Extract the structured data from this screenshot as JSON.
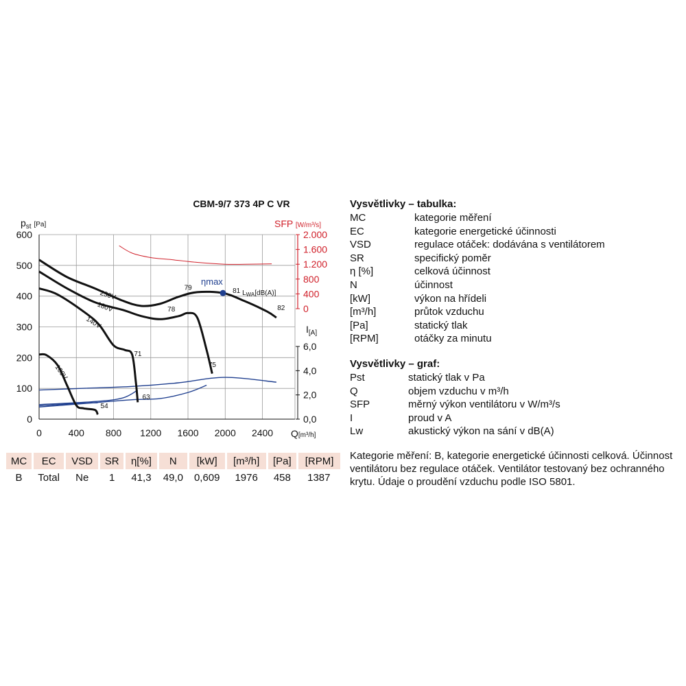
{
  "chart_data": {
    "type": "line",
    "title": "CBM-9/7 373 4P C VR",
    "xlabel": "Q",
    "xunit": "[m³/h]",
    "ylabel": "p",
    "ylabel_sub": "st",
    "yunit": "[Pa]",
    "sfp_label": "SFP",
    "sfp_unit": "[W/m³/s]",
    "current_label": "I",
    "current_unit": "[A]",
    "xlim": [
      0,
      2750
    ],
    "ylim": [
      0,
      600
    ],
    "x_ticks": [
      0,
      400,
      800,
      1200,
      1600,
      2000,
      2400
    ],
    "x_tick_labels": [
      "0",
      "400",
      "800",
      "1200",
      "1600",
      "2000",
      "2400"
    ],
    "y_ticks": [
      0,
      100,
      200,
      300,
      400,
      500,
      600
    ],
    "y_tick_labels": [
      "0",
      "100",
      "200",
      "300",
      "400",
      "500",
      "600"
    ],
    "sfp_ticks": [
      0,
      400,
      800,
      1200,
      1600,
      2000
    ],
    "sfp_tick_labels": [
      "0",
      "400",
      "800",
      "1.200",
      "1.600",
      "2.000"
    ],
    "current_ticks": [
      0,
      2,
      4,
      6
    ],
    "current_tick_labels": [
      "0,0",
      "2,0",
      "4,0",
      "6,0"
    ],
    "grid": true,
    "pressure_series": [
      {
        "name": "230V",
        "points": [
          [
            0,
            518
          ],
          [
            300,
            462
          ],
          [
            600,
            425
          ],
          [
            900,
            385
          ],
          [
            1100,
            368
          ],
          [
            1300,
            375
          ],
          [
            1500,
            398
          ],
          [
            1700,
            413
          ],
          [
            1976,
            410
          ],
          [
            2200,
            385
          ],
          [
            2450,
            350
          ],
          [
            2550,
            330
          ]
        ]
      },
      {
        "name": "180V",
        "points": [
          [
            0,
            480
          ],
          [
            300,
            425
          ],
          [
            600,
            380
          ],
          [
            900,
            355
          ],
          [
            1100,
            335
          ],
          [
            1300,
            325
          ],
          [
            1500,
            335
          ],
          [
            1600,
            345
          ],
          [
            1700,
            330
          ],
          [
            1800,
            225
          ],
          [
            1860,
            148
          ]
        ]
      },
      {
        "name": "140V",
        "points": [
          [
            0,
            425
          ],
          [
            200,
            405
          ],
          [
            500,
            345
          ],
          [
            650,
            305
          ],
          [
            800,
            240
          ],
          [
            920,
            225
          ],
          [
            1000,
            210
          ],
          [
            1040,
            120
          ],
          [
            1060,
            55
          ]
        ]
      },
      {
        "name": "100V",
        "points": [
          [
            0,
            210
          ],
          [
            80,
            208
          ],
          [
            200,
            175
          ],
          [
            300,
            110
          ],
          [
            400,
            45
          ],
          [
            480,
            35
          ],
          [
            600,
            30
          ],
          [
            630,
            15
          ]
        ]
      }
    ],
    "sfp_series": [
      {
        "name": "SFP",
        "points": [
          [
            860,
            1700
          ],
          [
            1000,
            1500
          ],
          [
            1200,
            1380
          ],
          [
            1400,
            1330
          ],
          [
            1700,
            1250
          ],
          [
            2000,
            1200
          ],
          [
            2200,
            1200
          ],
          [
            2500,
            1210
          ]
        ]
      }
    ],
    "current_series": [
      {
        "name": "230V",
        "points": [
          [
            0,
            2.4
          ],
          [
            500,
            2.55
          ],
          [
            1000,
            2.7
          ],
          [
            1500,
            3.0
          ],
          [
            2000,
            3.45
          ],
          [
            2550,
            3.05
          ]
        ]
      },
      {
        "name": "180V",
        "points": [
          [
            0,
            1.0
          ],
          [
            500,
            1.3
          ],
          [
            1000,
            1.6
          ],
          [
            1300,
            1.7
          ],
          [
            1600,
            2.2
          ],
          [
            1800,
            2.8
          ]
        ]
      },
      {
        "name": "140V",
        "points": [
          [
            0,
            1.2
          ],
          [
            600,
            1.45
          ],
          [
            900,
            1.75
          ],
          [
            1060,
            2.4
          ]
        ]
      },
      {
        "name": "100V",
        "points": [
          [
            0,
            1.1
          ],
          [
            400,
            1.3
          ],
          [
            630,
            1.35
          ]
        ]
      }
    ],
    "curve_labels": [
      {
        "text": "230V",
        "x": 650,
        "y": 405,
        "rotate": 18
      },
      {
        "text": "180V",
        "x": 620,
        "y": 368,
        "rotate": 22
      },
      {
        "text": "140V",
        "x": 500,
        "y": 322,
        "rotate": 32
      },
      {
        "text": "100V",
        "x": 170,
        "y": 170,
        "rotate": 55
      }
    ],
    "value_labels": [
      {
        "text": "79",
        "x": 1560,
        "y": 420
      },
      {
        "text": "81",
        "x": 2080,
        "y": 410
      },
      {
        "text": "82",
        "x": 2560,
        "y": 355
      },
      {
        "text": "78",
        "x": 1380,
        "y": 350
      },
      {
        "text": "71",
        "x": 1020,
        "y": 205
      },
      {
        "text": "75",
        "x": 1820,
        "y": 170
      },
      {
        "text": "63",
        "x": 1110,
        "y": 65
      },
      {
        "text": "54",
        "x": 660,
        "y": 36
      }
    ],
    "lwa_label": "L",
    "lwa_sub": "WA",
    "lwa_unit": "[dB(A)]",
    "eta_max_label": "ηmax",
    "eta_max_point": [
      1976,
      410
    ]
  },
  "table": {
    "headers": [
      "MC",
      "EC",
      "VSD",
      "SR",
      "η[%]",
      "N",
      "[kW]",
      "[m³/h]",
      "[Pa]",
      "[RPM]"
    ],
    "values": [
      "B",
      "Total",
      "Ne",
      "1",
      "41,3",
      "49,0",
      "0,609",
      "1976",
      "458",
      "1387"
    ]
  },
  "legend_table": {
    "title": "Vysvětlivky – tabulka:",
    "items": [
      {
        "key": "MC",
        "desc": "kategorie měření"
      },
      {
        "key": "EC",
        "desc": "kategorie energetické účinnosti"
      },
      {
        "key": "VSD",
        "desc": "regulace otáček: dodávána s ventilátorem"
      },
      {
        "key": "SR",
        "desc": "specifický poměr"
      },
      {
        "key": "η [%]",
        "desc": "celková účinnost"
      },
      {
        "key": "N",
        "desc": "účinnost"
      },
      {
        "key": "[kW]",
        "desc": "výkon na hřídeli"
      },
      {
        "key": "[m³/h]",
        "desc": "průtok vzduchu"
      },
      {
        "key": "[Pa]",
        "desc": "statický tlak"
      },
      {
        "key": "[RPM]",
        "desc": "otáčky za minutu"
      }
    ]
  },
  "legend_graph": {
    "title": "Vysvětlivky – graf:",
    "items": [
      {
        "key": "Pst",
        "desc": "statický tlak v Pa"
      },
      {
        "key": "Q",
        "desc": "objem vzduchu v m³/h"
      },
      {
        "key": "SFP",
        "desc": "měrný výkon ventilátoru v W/m³/s"
      },
      {
        "key": "I",
        "desc": "proud v A"
      },
      {
        "key": "Lw",
        "desc": "akustický výkon na sání v dB(A)"
      }
    ]
  },
  "note": "Kategorie měření: B, kategorie energetické účinnosti celková. Účinnost ventilátoru bez regulace otáček. Ventilátor testovaný bez ochranného krytu. Údaje o proudění vzduchu podle ISO 5801.",
  "colors": {
    "pressure": "#111111",
    "current": "#1f3f8f",
    "sfp": "#d0202a",
    "eta": "#1f3f8f",
    "header_bg": "#f6dfd6"
  }
}
